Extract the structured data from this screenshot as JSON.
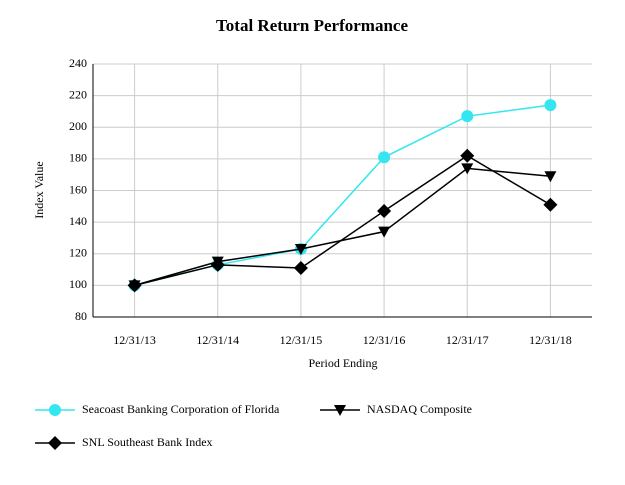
{
  "chart_data": {
    "type": "line",
    "title": "Total Return Performance",
    "x_label": "Period Ending",
    "y_label": "Index Value",
    "categories": [
      "12/31/13",
      "12/31/14",
      "12/31/15",
      "12/31/16",
      "12/31/17",
      "12/31/18"
    ],
    "series": [
      {
        "name": "Seacoast Banking Corporation of Florida",
        "color": "#33e6f0",
        "marker": "circle",
        "values": [
          100,
          113,
          123,
          181,
          207,
          214
        ]
      },
      {
        "name": "NASDAQ Composite",
        "color": "#000000",
        "marker": "triangle-down",
        "values": [
          100,
          115,
          123,
          134,
          174,
          169
        ]
      },
      {
        "name": "SNL Southeast Bank Index",
        "color": "#000000",
        "marker": "diamond",
        "values": [
          100,
          113,
          111,
          147,
          182,
          151
        ]
      }
    ],
    "ylim": [
      80,
      240
    ],
    "yticks": [
      80,
      100,
      120,
      140,
      160,
      180,
      200,
      220,
      240
    ],
    "grid": true
  }
}
